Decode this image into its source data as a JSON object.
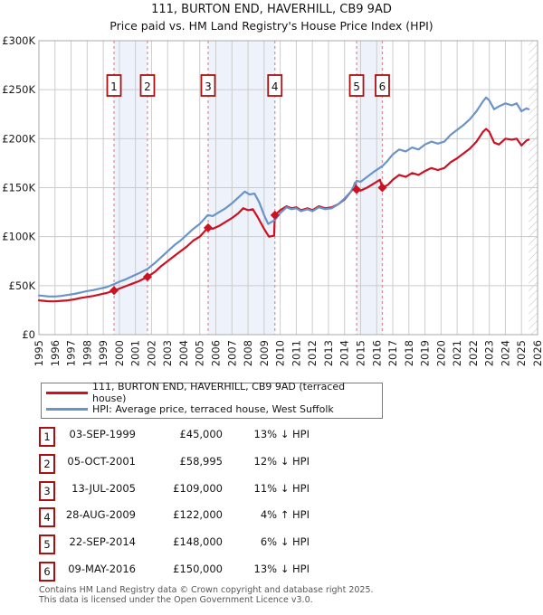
{
  "title": {
    "line1": "111, BURTON END, HAVERHILL, CB9 9AD",
    "line2": "Price paid vs. HM Land Registry's House Price Index (HPI)"
  },
  "chart_data": {
    "type": "line",
    "x_range": [
      1995,
      2026
    ],
    "y_range_gbp": [
      0,
      300000
    ],
    "y_tick_labels": [
      "£0",
      "£50K",
      "£100K",
      "£150K",
      "£200K",
      "£250K",
      "£300K"
    ],
    "y_tick_values_k": [
      0,
      50,
      100,
      150,
      200,
      250,
      300
    ],
    "x_tick_labels": [
      "1995",
      "1996",
      "1997",
      "1998",
      "1999",
      "2000",
      "2001",
      "2002",
      "2003",
      "2004",
      "2005",
      "2006",
      "2007",
      "2008",
      "2009",
      "2010",
      "2011",
      "2012",
      "2013",
      "2014",
      "2015",
      "2016",
      "2017",
      "2018",
      "2019",
      "2020",
      "2021",
      "2022",
      "2023",
      "2024",
      "2025",
      "2026"
    ],
    "grid": true,
    "units": "GBP thousands",
    "hatch_future_from": 2025.45,
    "series": [
      {
        "name": "111, BURTON END, HAVERHILL, CB9 9AD (terraced house)",
        "color": "#cc1122",
        "points": [
          [
            1995,
            35
          ],
          [
            1995.3,
            34.5
          ],
          [
            1995.6,
            34
          ],
          [
            1996,
            34
          ],
          [
            1996.4,
            34.5
          ],
          [
            1996.8,
            35
          ],
          [
            1997.2,
            36
          ],
          [
            1997.6,
            37.5
          ],
          [
            1998,
            38.5
          ],
          [
            1998.4,
            39.5
          ],
          [
            1998.8,
            41
          ],
          [
            1999.2,
            42.5
          ],
          [
            1999.67,
            45
          ],
          [
            2000,
            47
          ],
          [
            2000.4,
            49.5
          ],
          [
            2000.8,
            52
          ],
          [
            2001.2,
            54.5
          ],
          [
            2001.75,
            59
          ],
          [
            2002.2,
            64
          ],
          [
            2002.6,
            70
          ],
          [
            2003,
            75
          ],
          [
            2003.4,
            80
          ],
          [
            2003.8,
            85
          ],
          [
            2004.2,
            90
          ],
          [
            2004.6,
            96
          ],
          [
            2005,
            100
          ],
          [
            2005.5,
            109
          ],
          [
            2005.8,
            108
          ],
          [
            2006.2,
            111
          ],
          [
            2006.6,
            115
          ],
          [
            2007,
            119
          ],
          [
            2007.4,
            124
          ],
          [
            2007.7,
            129
          ],
          [
            2008,
            127
          ],
          [
            2008.3,
            128
          ],
          [
            2008.6,
            120
          ],
          [
            2009,
            108
          ],
          [
            2009.3,
            100
          ],
          [
            2009.62,
            101
          ],
          [
            2009.67,
            122
          ],
          [
            2010,
            127
          ],
          [
            2010.4,
            131
          ],
          [
            2010.7,
            129
          ],
          [
            2011,
            130
          ],
          [
            2011.3,
            127
          ],
          [
            2011.7,
            129
          ],
          [
            2012,
            127
          ],
          [
            2012.4,
            131
          ],
          [
            2012.8,
            129
          ],
          [
            2013.2,
            130
          ],
          [
            2013.6,
            133
          ],
          [
            2014,
            138
          ],
          [
            2014.5,
            148
          ],
          [
            2014.65,
            155
          ],
          [
            2014.75,
            148
          ],
          [
            2015,
            147
          ],
          [
            2015.4,
            150
          ],
          [
            2015.8,
            154
          ],
          [
            2016.2,
            158
          ],
          [
            2016.35,
            150
          ],
          [
            2016.7,
            153
          ],
          [
            2017,
            158
          ],
          [
            2017.4,
            163
          ],
          [
            2017.8,
            161
          ],
          [
            2018.2,
            165
          ],
          [
            2018.6,
            163
          ],
          [
            2019,
            167
          ],
          [
            2019.4,
            170
          ],
          [
            2019.8,
            168
          ],
          [
            2020.2,
            170
          ],
          [
            2020.6,
            176
          ],
          [
            2021,
            180
          ],
          [
            2021.4,
            185
          ],
          [
            2021.8,
            190
          ],
          [
            2022.2,
            197
          ],
          [
            2022.6,
            207
          ],
          [
            2022.8,
            210
          ],
          [
            2023,
            207
          ],
          [
            2023.3,
            196
          ],
          [
            2023.6,
            194
          ],
          [
            2024,
            200
          ],
          [
            2024.4,
            199
          ],
          [
            2024.7,
            200
          ],
          [
            2025,
            193
          ],
          [
            2025.3,
            198
          ],
          [
            2025.45,
            199
          ]
        ]
      },
      {
        "name": "HPI: Average price, terraced house, West Suffolk",
        "color": "#6a94c8",
        "points": [
          [
            1995,
            40
          ],
          [
            1995.3,
            39.5
          ],
          [
            1995.6,
            39
          ],
          [
            1996,
            39
          ],
          [
            1996.4,
            39.5
          ],
          [
            1996.8,
            40.5
          ],
          [
            1997.2,
            41.5
          ],
          [
            1997.6,
            43
          ],
          [
            1998,
            44.5
          ],
          [
            1998.4,
            45.5
          ],
          [
            1998.8,
            47
          ],
          [
            1999.2,
            48.5
          ],
          [
            1999.67,
            51.5
          ],
          [
            2000,
            54
          ],
          [
            2000.4,
            56.5
          ],
          [
            2000.8,
            59.5
          ],
          [
            2001.2,
            62.5
          ],
          [
            2001.75,
            67
          ],
          [
            2002.2,
            73
          ],
          [
            2002.6,
            79
          ],
          [
            2003,
            85
          ],
          [
            2003.4,
            91
          ],
          [
            2003.8,
            96
          ],
          [
            2004.2,
            102
          ],
          [
            2004.6,
            108
          ],
          [
            2005,
            113
          ],
          [
            2005.5,
            122
          ],
          [
            2005.8,
            121
          ],
          [
            2006.2,
            125
          ],
          [
            2006.6,
            129
          ],
          [
            2007,
            134
          ],
          [
            2007.4,
            140
          ],
          [
            2007.8,
            146
          ],
          [
            2008.1,
            143
          ],
          [
            2008.4,
            144
          ],
          [
            2008.7,
            135
          ],
          [
            2009,
            122
          ],
          [
            2009.25,
            113
          ],
          [
            2009.67,
            117
          ],
          [
            2010,
            124
          ],
          [
            2010.4,
            130
          ],
          [
            2010.7,
            128
          ],
          [
            2011,
            129
          ],
          [
            2011.3,
            126
          ],
          [
            2011.7,
            128
          ],
          [
            2012,
            126
          ],
          [
            2012.4,
            130
          ],
          [
            2012.8,
            128
          ],
          [
            2013.2,
            129
          ],
          [
            2013.6,
            133
          ],
          [
            2014,
            139
          ],
          [
            2014.4,
            146
          ],
          [
            2014.75,
            157
          ],
          [
            2015,
            156
          ],
          [
            2015.4,
            161
          ],
          [
            2015.8,
            166
          ],
          [
            2016.35,
            172
          ],
          [
            2016.7,
            178
          ],
          [
            2017,
            184
          ],
          [
            2017.4,
            189
          ],
          [
            2017.8,
            187
          ],
          [
            2018.2,
            191
          ],
          [
            2018.6,
            189
          ],
          [
            2019,
            194
          ],
          [
            2019.4,
            197
          ],
          [
            2019.8,
            195
          ],
          [
            2020.2,
            197
          ],
          [
            2020.6,
            204
          ],
          [
            2021,
            209
          ],
          [
            2021.4,
            214
          ],
          [
            2021.8,
            220
          ],
          [
            2022.2,
            228
          ],
          [
            2022.6,
            238
          ],
          [
            2022.8,
            242
          ],
          [
            2023,
            239
          ],
          [
            2023.3,
            230
          ],
          [
            2023.6,
            233
          ],
          [
            2024,
            236
          ],
          [
            2024.4,
            234
          ],
          [
            2024.7,
            236
          ],
          [
            2025,
            228
          ],
          [
            2025.3,
            231
          ],
          [
            2025.45,
            230
          ]
        ]
      }
    ],
    "sales_markers": [
      {
        "n": "1",
        "x": 1999.67,
        "value_k": 45
      },
      {
        "n": "2",
        "x": 2001.75,
        "value_k": 59
      },
      {
        "n": "3",
        "x": 2005.52,
        "value_k": 109
      },
      {
        "n": "4",
        "x": 2009.67,
        "value_k": 122
      },
      {
        "n": "5",
        "x": 2014.75,
        "value_k": 148
      },
      {
        "n": "6",
        "x": 2016.35,
        "value_k": 150
      }
    ],
    "ownership_bands": [
      [
        1999.67,
        2001.75
      ],
      [
        2005.52,
        2009.67
      ],
      [
        2014.75,
        2016.35
      ]
    ]
  },
  "legend": {
    "items": [
      {
        "label": "111, BURTON END, HAVERHILL, CB9 9AD (terraced house)",
        "color": "#cc1122"
      },
      {
        "label": "HPI: Average price, terraced house, West Suffolk",
        "color": "#6a94c8"
      }
    ]
  },
  "table": {
    "rows": [
      {
        "num": "1",
        "date": "03-SEP-1999",
        "price": "£45,000",
        "delta": "13% ↓ HPI"
      },
      {
        "num": "2",
        "date": "05-OCT-2001",
        "price": "£58,995",
        "delta": "12% ↓ HPI"
      },
      {
        "num": "3",
        "date": "13-JUL-2005",
        "price": "£109,000",
        "delta": "11% ↓ HPI"
      },
      {
        "num": "4",
        "date": "28-AUG-2009",
        "price": "£122,000",
        "delta": "4% ↑ HPI"
      },
      {
        "num": "5",
        "date": "22-SEP-2014",
        "price": "£148,000",
        "delta": "6% ↓ HPI"
      },
      {
        "num": "6",
        "date": "09-MAY-2016",
        "price": "£150,000",
        "delta": "13% ↓ HPI"
      }
    ]
  },
  "footer": {
    "line1": "Contains HM Land Registry data © Crown copyright and database right 2025.",
    "line2": "This data is licensed under the Open Government Licence v3.0."
  },
  "colors": {
    "grid": "#cccccc",
    "plot_border": "#aaaaaa",
    "band_fill": "#eef2fb",
    "sale_dash": "#ee8585",
    "marker_box_border": "#aa1111",
    "axis_text": "#1a1a1a",
    "hatch_line": "#bfbfc6"
  }
}
